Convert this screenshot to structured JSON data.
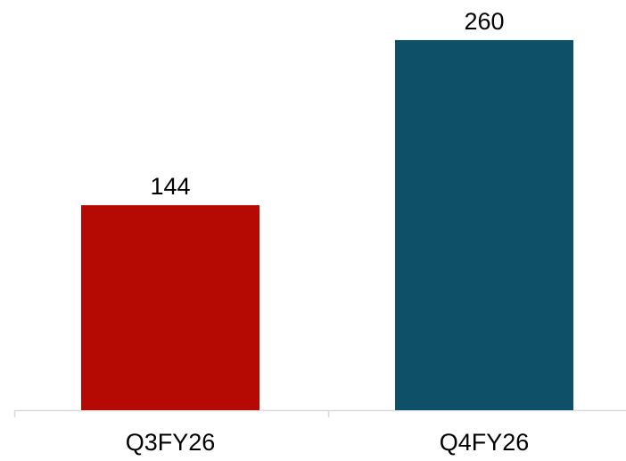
{
  "chart_data": {
    "type": "bar",
    "categories": [
      "Q3FY26",
      "Q4FY26"
    ],
    "values": [
      144,
      260
    ],
    "data_labels": [
      "144",
      "260"
    ],
    "bar_colors": [
      "#B50A04",
      "#0E5068"
    ],
    "title": "",
    "xlabel": "",
    "ylabel": "",
    "ylim": [
      0,
      270
    ],
    "grid": false,
    "legend": "none"
  },
  "colors": {
    "axis": "#D9D9D9",
    "text": "#000000"
  }
}
